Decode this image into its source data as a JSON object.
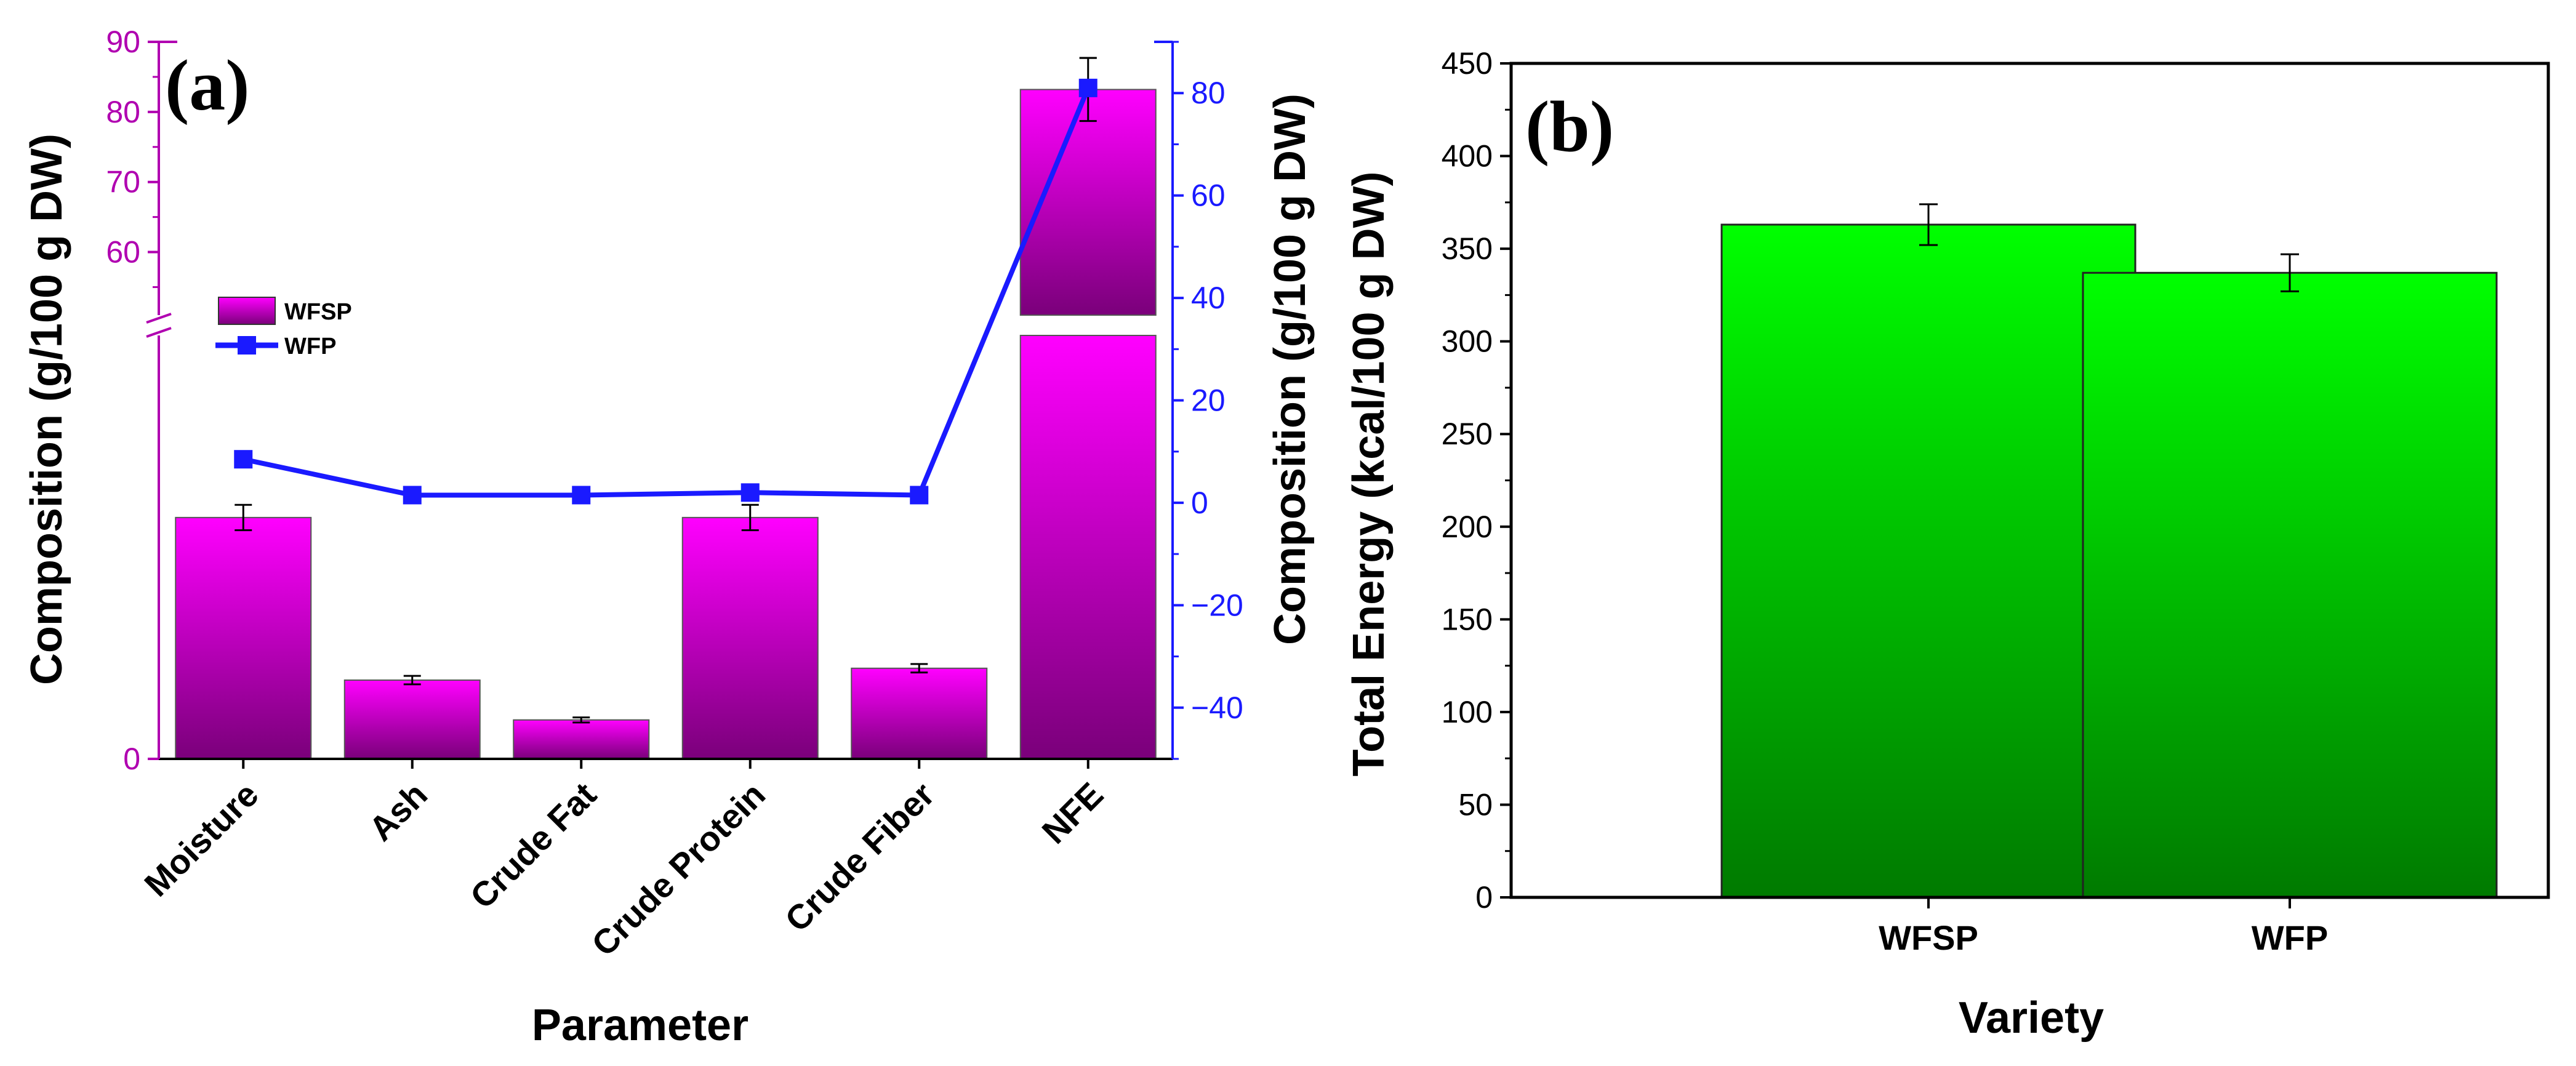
{
  "panel_a_label": "(a)",
  "panel_b_label": "(b)",
  "colors": {
    "bar_a_top": "#ff00ff",
    "bar_a_bottom": "#7a007a",
    "line_a": "#1a1aff",
    "axis_left_a": "#b000b0",
    "axis_right_a": "#1a1aff",
    "bar_b_top": "#00ff00",
    "bar_b_bottom": "#007a00"
  },
  "chart_data": [
    {
      "id": "a",
      "type": "bar",
      "categories": [
        "Moisture",
        "Ash",
        "Crude Fat",
        "Crude Protein",
        "Crude Fiber",
        "NFE"
      ],
      "series": [
        {
          "name": "WFSP",
          "kind": "bar",
          "axis": "left",
          "values": [
            28.5,
            9.3,
            4.6,
            28.5,
            10.7,
            83.2
          ],
          "errors": [
            1.5,
            0.5,
            0.3,
            1.5,
            0.5,
            4.5
          ]
        },
        {
          "name": "WFP",
          "kind": "line",
          "axis": "right",
          "values": [
            8.5,
            1.5,
            1.5,
            2.0,
            1.5,
            81.0
          ],
          "errors": [
            0,
            0,
            0,
            0,
            0,
            0
          ]
        }
      ],
      "xlabel": "Parameter",
      "ylabel_left": "Composition (g/100 g DW)",
      "ylabel_right": "Composition (g/100 g DW)",
      "left_axis": {
        "segments": [
          {
            "range": [
              0,
              50
            ],
            "ticks": [
              0
            ]
          },
          {
            "range": [
              51,
              90
            ],
            "ticks": [
              60,
              70,
              80,
              90
            ]
          }
        ],
        "break": true
      },
      "right_axis": {
        "range": [
          -50,
          90
        ],
        "ticks": [
          -40,
          -20,
          0,
          20,
          40,
          60,
          80
        ]
      },
      "legend": {
        "position": "upper-left",
        "entries": [
          "WFSP",
          "WFP"
        ]
      }
    },
    {
      "id": "b",
      "type": "bar",
      "categories": [
        "WFSP",
        "WFP"
      ],
      "values": [
        363,
        337
      ],
      "errors": [
        11,
        10
      ],
      "xlabel": "Variety",
      "ylabel": "Total Energy (kcal/100 g DW)",
      "ylim": [
        0,
        450
      ],
      "yticks": [
        0,
        50,
        100,
        150,
        200,
        250,
        300,
        350,
        400,
        450
      ]
    }
  ]
}
